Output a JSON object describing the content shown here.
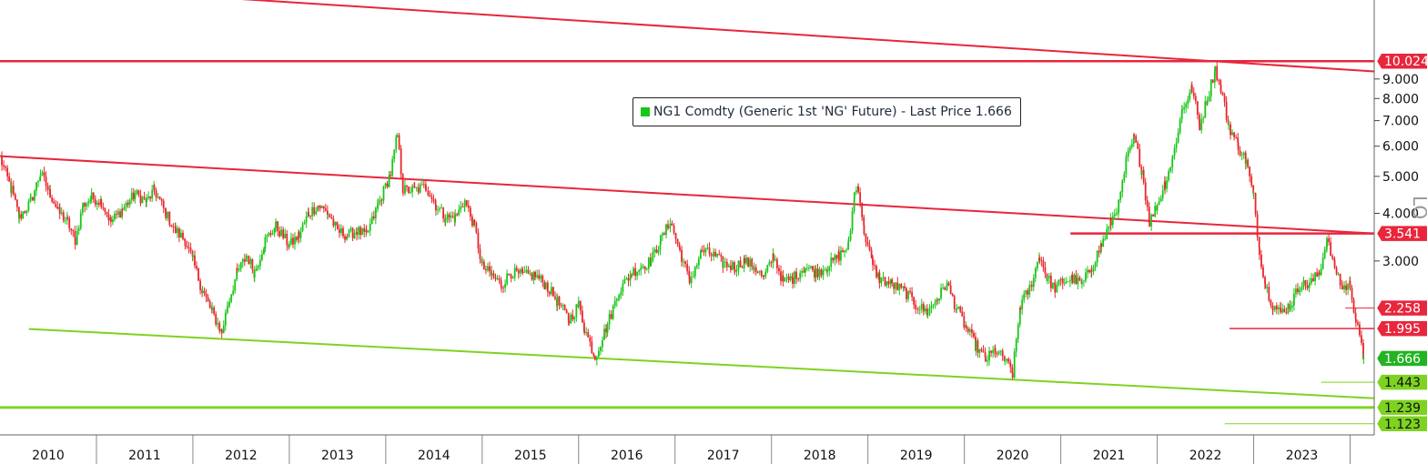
{
  "legend": {
    "text": "NG1 Comdty (Generic 1st 'NG' Future) - Last Price 1.666",
    "swatch_color": "#18c618"
  },
  "side_label": "LO",
  "chart_data": {
    "type": "candlestick",
    "y_scale": "log",
    "ylim": [
      1.05,
      14.5
    ],
    "xlim": [
      2010.0,
      2024.25
    ],
    "y_ticks": [
      3.0,
      4.0,
      5.0,
      6.0,
      7.0,
      8.0,
      9.0
    ],
    "y_tick_labels": [
      "3.000",
      "4.000",
      "5.000",
      "6.000",
      "7.000",
      "8.000",
      "9.000"
    ],
    "x_labels": [
      {
        "label": "2010",
        "x": 2010.5
      },
      {
        "label": "2011",
        "x": 2011.5
      },
      {
        "label": "2012",
        "x": 2012.5
      },
      {
        "label": "2013",
        "x": 2013.5
      },
      {
        "label": "2014",
        "x": 2014.5
      },
      {
        "label": "2015",
        "x": 2015.5
      },
      {
        "label": "2016",
        "x": 2016.5
      },
      {
        "label": "2017",
        "x": 2017.5
      },
      {
        "label": "2018",
        "x": 2018.5
      },
      {
        "label": "2019",
        "x": 2019.5
      },
      {
        "label": "2020",
        "x": 2020.5
      },
      {
        "label": "2021",
        "x": 2021.5
      },
      {
        "label": "2022",
        "x": 2022.5
      },
      {
        "label": "2023",
        "x": 2023.5
      }
    ],
    "x_separators": [
      2011,
      2012,
      2013,
      2014,
      2015,
      2016,
      2017,
      2018,
      2019,
      2020,
      2021,
      2022,
      2023,
      2024
    ],
    "price_series": {
      "name": "NG1 Comdty (Generic 1st 'NG' Future) - Last Price",
      "up_color": "#18c618",
      "down_color": "#e8262b",
      "points": [
        [
          2010.0,
          5.6
        ],
        [
          2010.12,
          4.6
        ],
        [
          2010.2,
          3.9
        ],
        [
          2010.32,
          4.3
        ],
        [
          2010.42,
          5.1
        ],
        [
          2010.52,
          4.5
        ],
        [
          2010.62,
          4.0
        ],
        [
          2010.7,
          3.8
        ],
        [
          2010.78,
          3.4
        ],
        [
          2010.86,
          4.2
        ],
        [
          2010.95,
          4.4
        ],
        [
          2011.05,
          4.3
        ],
        [
          2011.15,
          3.8
        ],
        [
          2011.27,
          4.1
        ],
        [
          2011.4,
          4.5
        ],
        [
          2011.52,
          4.3
        ],
        [
          2011.6,
          4.6
        ],
        [
          2011.72,
          4.0
        ],
        [
          2011.82,
          3.6
        ],
        [
          2011.92,
          3.4
        ],
        [
          2012.0,
          3.0
        ],
        [
          2012.1,
          2.5
        ],
        [
          2012.2,
          2.2
        ],
        [
          2012.3,
          1.95
        ],
        [
          2012.36,
          2.3
        ],
        [
          2012.46,
          2.8
        ],
        [
          2012.56,
          3.1
        ],
        [
          2012.64,
          2.8
        ],
        [
          2012.75,
          3.4
        ],
        [
          2012.86,
          3.7
        ],
        [
          2013.0,
          3.3
        ],
        [
          2013.1,
          3.5
        ],
        [
          2013.2,
          4.0
        ],
        [
          2013.3,
          4.2
        ],
        [
          2013.4,
          4.0
        ],
        [
          2013.5,
          3.6
        ],
        [
          2013.6,
          3.5
        ],
        [
          2013.7,
          3.6
        ],
        [
          2013.8,
          3.5
        ],
        [
          2013.92,
          4.2
        ],
        [
          2014.05,
          5.1
        ],
        [
          2014.12,
          6.4
        ],
        [
          2014.18,
          4.6
        ],
        [
          2014.3,
          4.6
        ],
        [
          2014.42,
          4.7
        ],
        [
          2014.52,
          4.2
        ],
        [
          2014.62,
          3.9
        ],
        [
          2014.72,
          3.9
        ],
        [
          2014.82,
          4.3
        ],
        [
          2014.92,
          3.7
        ],
        [
          2015.0,
          2.9
        ],
        [
          2015.1,
          2.75
        ],
        [
          2015.2,
          2.6
        ],
        [
          2015.3,
          2.8
        ],
        [
          2015.42,
          2.75
        ],
        [
          2015.55,
          2.75
        ],
        [
          2015.66,
          2.6
        ],
        [
          2015.78,
          2.35
        ],
        [
          2015.9,
          2.1
        ],
        [
          2016.0,
          2.3
        ],
        [
          2016.06,
          2.0
        ],
        [
          2016.17,
          1.68
        ],
        [
          2016.3,
          2.05
        ],
        [
          2016.42,
          2.5
        ],
        [
          2016.55,
          2.8
        ],
        [
          2016.65,
          2.9
        ],
        [
          2016.75,
          3.0
        ],
        [
          2016.85,
          3.4
        ],
        [
          2016.95,
          3.8
        ],
        [
          2017.05,
          3.2
        ],
        [
          2017.15,
          2.65
        ],
        [
          2017.28,
          3.2
        ],
        [
          2017.4,
          3.1
        ],
        [
          2017.5,
          2.95
        ],
        [
          2017.62,
          2.9
        ],
        [
          2017.72,
          3.0
        ],
        [
          2017.82,
          2.9
        ],
        [
          2017.92,
          2.7
        ],
        [
          2018.02,
          3.1
        ],
        [
          2018.12,
          2.65
        ],
        [
          2018.22,
          2.7
        ],
        [
          2018.35,
          2.9
        ],
        [
          2018.46,
          2.8
        ],
        [
          2018.58,
          2.9
        ],
        [
          2018.7,
          3.1
        ],
        [
          2018.8,
          3.3
        ],
        [
          2018.86,
          4.5
        ],
        [
          2018.9,
          4.7
        ],
        [
          2018.96,
          3.6
        ],
        [
          2019.05,
          2.9
        ],
        [
          2019.12,
          2.7
        ],
        [
          2019.25,
          2.6
        ],
        [
          2019.38,
          2.5
        ],
        [
          2019.5,
          2.3
        ],
        [
          2019.62,
          2.2
        ],
        [
          2019.72,
          2.4
        ],
        [
          2019.82,
          2.6
        ],
        [
          2019.92,
          2.25
        ],
        [
          2020.02,
          2.0
        ],
        [
          2020.12,
          1.8
        ],
        [
          2020.22,
          1.65
        ],
        [
          2020.32,
          1.75
        ],
        [
          2020.42,
          1.65
        ],
        [
          2020.5,
          1.52
        ],
        [
          2020.58,
          2.3
        ],
        [
          2020.68,
          2.55
        ],
        [
          2020.78,
          3.1
        ],
        [
          2020.86,
          2.7
        ],
        [
          2020.94,
          2.55
        ],
        [
          2021.02,
          2.65
        ],
        [
          2021.12,
          2.7
        ],
        [
          2021.22,
          2.6
        ],
        [
          2021.32,
          2.9
        ],
        [
          2021.42,
          3.3
        ],
        [
          2021.52,
          3.8
        ],
        [
          2021.6,
          4.2
        ],
        [
          2021.68,
          5.5
        ],
        [
          2021.76,
          6.3
        ],
        [
          2021.84,
          5.2
        ],
        [
          2021.92,
          3.8
        ],
        [
          2022.0,
          4.2
        ],
        [
          2022.08,
          4.8
        ],
        [
          2022.16,
          5.6
        ],
        [
          2022.26,
          7.5
        ],
        [
          2022.36,
          8.5
        ],
        [
          2022.44,
          6.8
        ],
        [
          2022.52,
          8.0
        ],
        [
          2022.6,
          9.6
        ],
        [
          2022.66,
          8.5
        ],
        [
          2022.74,
          6.8
        ],
        [
          2022.84,
          6.0
        ],
        [
          2022.92,
          5.5
        ],
        [
          2023.0,
          4.4
        ],
        [
          2023.06,
          3.2
        ],
        [
          2023.12,
          2.6
        ],
        [
          2023.2,
          2.3
        ],
        [
          2023.28,
          2.2
        ],
        [
          2023.38,
          2.3
        ],
        [
          2023.48,
          2.6
        ],
        [
          2023.58,
          2.6
        ],
        [
          2023.68,
          2.8
        ],
        [
          2023.76,
          3.4
        ],
        [
          2023.84,
          2.9
        ],
        [
          2023.92,
          2.55
        ],
        [
          2024.0,
          2.6
        ],
        [
          2024.06,
          2.1
        ],
        [
          2024.14,
          1.666
        ]
      ]
    },
    "trendlines": [
      {
        "color": "#e8263c",
        "width": 2,
        "points": [
          [
            2010.0,
            16.0
          ],
          [
            2024.25,
            9.42
          ]
        ]
      },
      {
        "color": "#e8263c",
        "width": 2.5,
        "points": [
          [
            2010.0,
            10.024
          ],
          [
            2024.25,
            10.024
          ]
        ]
      },
      {
        "color": "#e8263c",
        "width": 2,
        "points": [
          [
            2010.0,
            5.65
          ],
          [
            2024.25,
            3.541
          ]
        ]
      },
      {
        "color": "#e8263c",
        "width": 2.5,
        "points": [
          [
            2021.1,
            3.541
          ],
          [
            2024.25,
            3.541
          ]
        ]
      },
      {
        "color": "#e8263c",
        "width": 1,
        "points": [
          [
            2023.95,
            2.258
          ],
          [
            2024.25,
            2.258
          ]
        ]
      },
      {
        "color": "#e8263c",
        "width": 1.5,
        "points": [
          [
            2022.75,
            1.995
          ],
          [
            2024.25,
            1.995
          ]
        ]
      },
      {
        "color": "#7ed321",
        "width": 2,
        "points": [
          [
            2010.3,
            1.99
          ],
          [
            2024.25,
            1.31
          ]
        ]
      },
      {
        "color": "#7ed321",
        "width": 1,
        "points": [
          [
            2023.7,
            1.443
          ],
          [
            2024.25,
            1.443
          ]
        ]
      },
      {
        "color": "#7ed321",
        "width": 3,
        "points": [
          [
            2010.0,
            1.239
          ],
          [
            2024.25,
            1.239
          ]
        ]
      },
      {
        "color": "#7ed321",
        "width": 1,
        "points": [
          [
            2022.7,
            1.123
          ],
          [
            2024.25,
            1.123
          ]
        ]
      }
    ],
    "price_badges": [
      {
        "label": "10.024",
        "value": 10.024,
        "bg": "#e8263c",
        "fg": "#ffffff"
      },
      {
        "label": "3.541",
        "value": 3.541,
        "bg": "#e8263c",
        "fg": "#ffffff"
      },
      {
        "label": "2.258",
        "value": 2.258,
        "bg": "#e8263c",
        "fg": "#ffffff"
      },
      {
        "label": "1.995",
        "value": 1.995,
        "bg": "#e8263c",
        "fg": "#ffffff"
      },
      {
        "label": "1.666",
        "value": 1.666,
        "bg": "#22b422",
        "fg": "#ffffff"
      },
      {
        "label": "1.443",
        "value": 1.443,
        "bg": "#7ed321",
        "fg": "#111111"
      },
      {
        "label": "1.239",
        "value": 1.239,
        "bg": "#7ed321",
        "fg": "#111111"
      },
      {
        "label": "1.123",
        "value": 1.123,
        "bg": "#7ed321",
        "fg": "#111111"
      }
    ]
  }
}
